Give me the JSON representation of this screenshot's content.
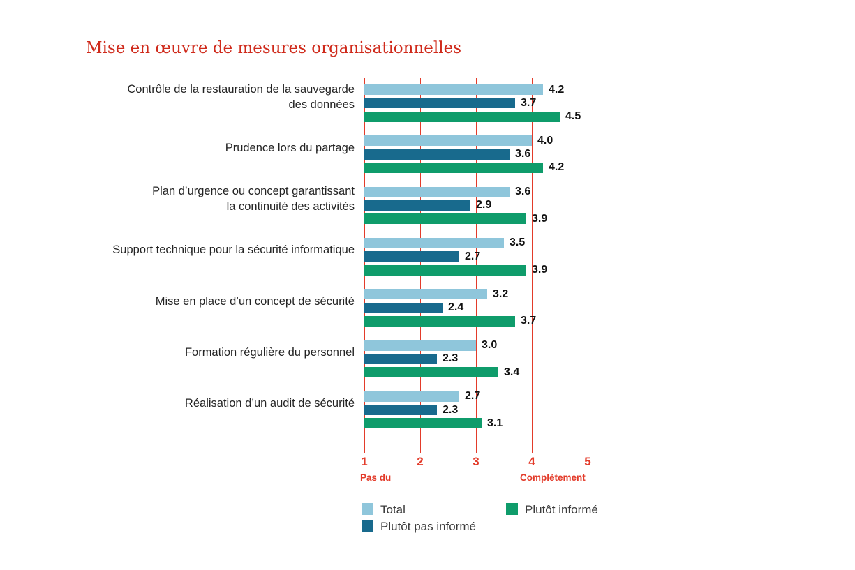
{
  "title": "Mise en œuvre de mesures organisationnelles",
  "colors": {
    "title_red": "#cf2a1b",
    "axis_red": "#e33b2a",
    "label_text": "#242424",
    "value_text": "#111111",
    "legend_text": "#3a3a3a"
  },
  "chart_data": {
    "type": "bar",
    "orientation": "horizontal",
    "title": "Mise en œuvre de mesures organisationnelles",
    "categories": [
      "Contrôle de la restauration de la sauvegarde\ndes données",
      "Prudence lors du partage",
      "Plan d’urgence ou concept garantissant\nla continuité des activités",
      "Support technique pour la sécurité informatique",
      "Mise en place d’un concept de sécurité",
      "Formation régulière du personnel",
      "Réalisation d’un audit de sécurité"
    ],
    "series": [
      {
        "name": "Total",
        "color": "#8fc6db",
        "values": [
          4.2,
          4.0,
          3.6,
          3.5,
          3.2,
          3.0,
          2.7
        ]
      },
      {
        "name": "Plutôt pas informé",
        "color": "#186a8d",
        "values": [
          3.7,
          3.6,
          2.9,
          2.7,
          2.4,
          2.3,
          2.3
        ]
      },
      {
        "name": "Plutôt informé",
        "color": "#0f9c6b",
        "values": [
          4.5,
          4.2,
          3.9,
          3.9,
          3.7,
          3.4,
          3.1
        ]
      }
    ],
    "xlim": [
      1,
      5
    ],
    "x_ticks": [
      "1",
      "2",
      "3",
      "4",
      "5"
    ],
    "x_min_label": "Pas du",
    "x_max_label": "Complètement",
    "grid": "vertical red gridlines at each tick",
    "legend_position": "bottom",
    "value_labels": "shown to one decimal place at end of each bar"
  }
}
